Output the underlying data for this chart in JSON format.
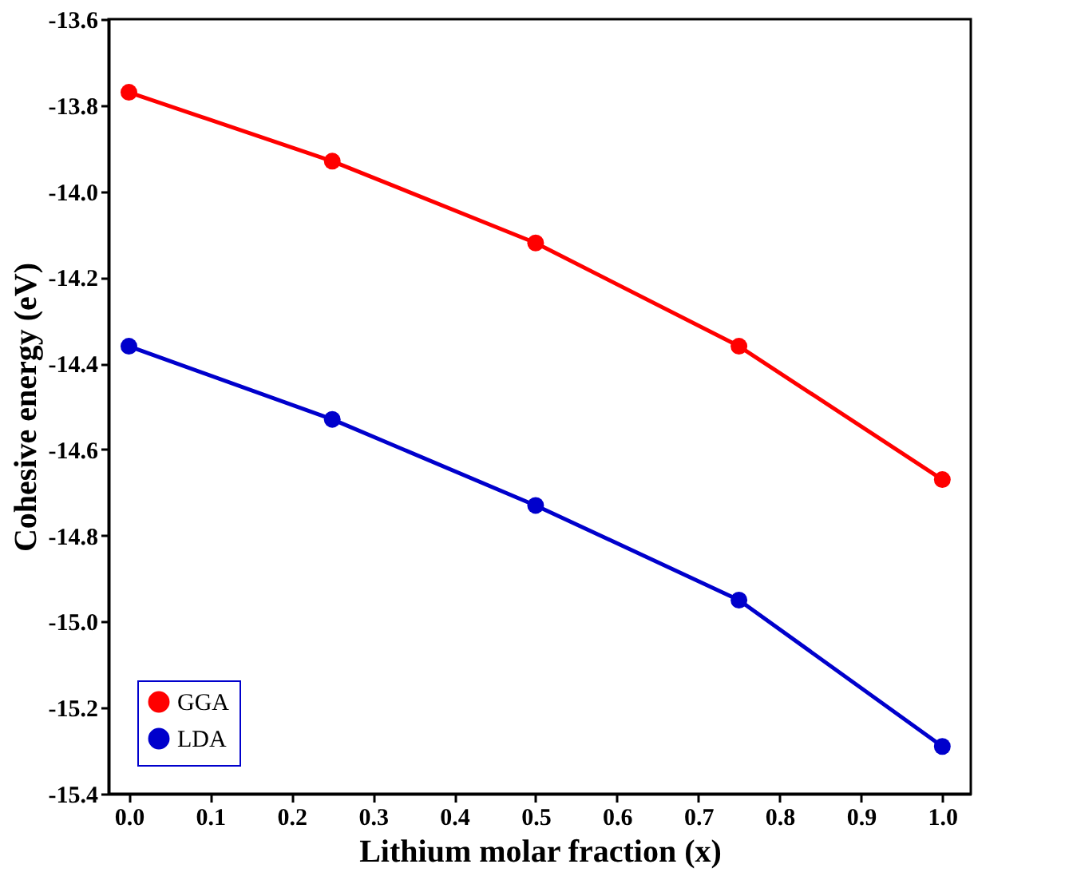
{
  "chart_data": {
    "type": "line",
    "xlabel": "Lithium molar fraction (x)",
    "ylabel": "Cohesive energy (eV)",
    "x": [
      0,
      0.25,
      0.5,
      0.75,
      1.0
    ],
    "series": [
      {
        "name": "GGA",
        "color": "#ff0000",
        "values": [
          -13.77,
          -13.93,
          -14.12,
          -14.36,
          -14.67
        ]
      },
      {
        "name": "LDA",
        "color": "#0000cc",
        "values": [
          -14.36,
          -14.53,
          -14.73,
          -14.95,
          -15.29
        ]
      }
    ],
    "xlim": [
      -0.025,
      1.035
    ],
    "xticks": [
      {
        "value": 0,
        "label": "0.0"
      },
      0.1,
      0.2,
      0.3,
      0.4,
      0.5,
      0.6,
      0.7,
      0.8,
      0.9,
      {
        "value": 1,
        "label": "1.0"
      }
    ],
    "ylim": [
      -15.4,
      -13.6
    ],
    "yticks": [
      -15.4,
      -15.2,
      {
        "value": -15,
        "label": "-15.0"
      },
      -14.8,
      -14.6,
      -14.4,
      -14.2,
      {
        "value": -14,
        "label": "-14.0"
      },
      -13.8,
      -13.6
    ],
    "legend": "bottom left",
    "marker": "circle",
    "line_style": "solid",
    "grid": false
  }
}
